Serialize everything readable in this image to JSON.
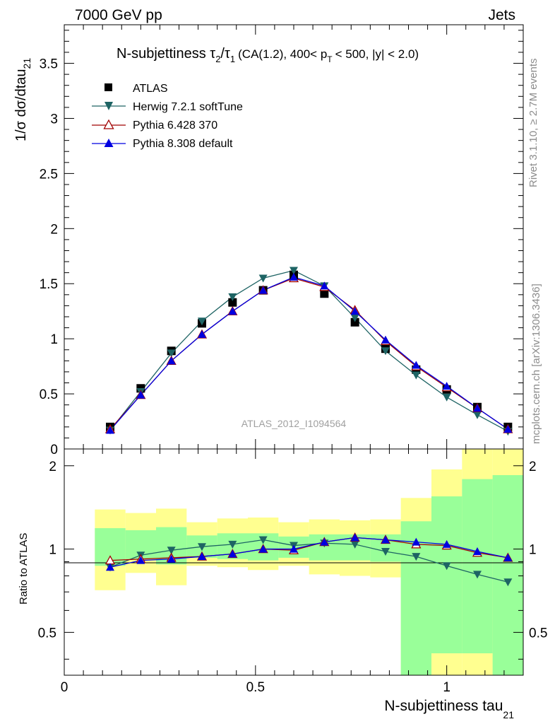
{
  "header": {
    "left": "7000 GeV pp",
    "right": "Jets"
  },
  "side_labels": {
    "rivet": "Rivet 3.1.10, ≥ 2.7M events",
    "mcplots": "mcplots.cern.ch [arXiv:1306.3436]"
  },
  "chart_data": [
    {
      "panel": "distribution",
      "type": "line",
      "title_main": "N-subjettiness τ",
      "title_tau2_sub": "2",
      "title_slash": "/τ",
      "title_tau1_sub": "1",
      "title_cut1": "(CA(1.2), 400< p",
      "title_pt_sub": "T",
      "title_cut2": "< 500, |y| < 2.0)",
      "ylabel": "1/σ dσ/dtau",
      "ylabel_sub": "21",
      "xlim": [
        0,
        1.2
      ],
      "ylim": [
        0,
        3.85
      ],
      "yticks": [
        "0",
        "0.5",
        "1",
        "1.5",
        "2",
        "2.5",
        "3",
        "3.5"
      ],
      "watermark": "ATLAS_2012_I1094564",
      "legend_position": "top-left",
      "x": [
        0.12,
        0.2,
        0.28,
        0.36,
        0.44,
        0.52,
        0.6,
        0.68,
        0.76,
        0.84,
        0.92,
        1.0,
        1.08,
        1.16
      ],
      "series": [
        {
          "name": "ATLAS",
          "marker": "square",
          "color": "#000000",
          "values": [
            0.2,
            0.55,
            0.89,
            1.14,
            1.33,
            1.44,
            1.58,
            1.41,
            1.15,
            0.91,
            0.72,
            0.54,
            0.38,
            0.2
          ]
        },
        {
          "name": "Herwig 7.2.1 softTune",
          "marker": "triangle-down",
          "color": "#1e6464",
          "values": [
            0.17,
            0.52,
            0.87,
            1.16,
            1.38,
            1.55,
            1.62,
            1.48,
            1.19,
            0.89,
            0.67,
            0.47,
            0.31,
            0.16
          ]
        },
        {
          "name": "Pythia 6.428 370",
          "marker": "triangle-open",
          "color": "#a00000",
          "values": [
            0.18,
            0.49,
            0.8,
            1.04,
            1.25,
            1.44,
            1.55,
            1.47,
            1.26,
            0.98,
            0.75,
            0.56,
            0.37,
            0.18
          ]
        },
        {
          "name": "Pythia 8.308 default",
          "marker": "triangle-up",
          "color": "#0000e0",
          "values": [
            0.17,
            0.49,
            0.8,
            1.04,
            1.25,
            1.44,
            1.56,
            1.48,
            1.25,
            0.99,
            0.76,
            0.57,
            0.37,
            0.18
          ]
        }
      ]
    },
    {
      "panel": "ratio",
      "type": "line",
      "ylabel": "Ratio to ATLAS",
      "xlabel": "N-subjettiness tau",
      "xlabel_sub": "21",
      "xlim": [
        0,
        1.2
      ],
      "ylim_log": [
        0.35,
        2.3
      ],
      "yticks": [
        "0.5",
        "1",
        "2"
      ],
      "xticks": [
        "0",
        "0.5",
        "1"
      ],
      "bands": {
        "edges": [
          0.08,
          0.16,
          0.24,
          0.32,
          0.4,
          0.48,
          0.56,
          0.64,
          0.72,
          0.8,
          0.88,
          0.96,
          1.04,
          1.12,
          1.2
        ],
        "yellow_low": [
          0.71,
          0.82,
          0.74,
          0.87,
          0.86,
          0.84,
          0.87,
          0.81,
          0.8,
          0.79,
          0.3,
          0.3,
          0.3,
          0.3
        ],
        "yellow_high": [
          1.39,
          1.35,
          1.4,
          1.25,
          1.29,
          1.3,
          1.25,
          1.28,
          1.27,
          1.28,
          1.53,
          1.94,
          2.5,
          2.5
        ],
        "green_low": [
          0.87,
          0.92,
          0.88,
          0.93,
          0.92,
          0.91,
          0.93,
          0.91,
          0.91,
          0.9,
          0.3,
          0.42,
          0.42,
          0.3
        ],
        "green_high": [
          1.19,
          1.17,
          1.2,
          1.12,
          1.14,
          1.14,
          1.11,
          1.13,
          1.13,
          1.13,
          1.26,
          1.55,
          1.79,
          1.85
        ]
      },
      "x": [
        0.12,
        0.2,
        0.28,
        0.36,
        0.44,
        0.52,
        0.6,
        0.68,
        0.76,
        0.84,
        0.92,
        1.0,
        1.08,
        1.16
      ],
      "series": [
        {
          "name": "Herwig 7.2.1 softTune",
          "marker": "triangle-down",
          "color": "#1e6464",
          "values": [
            0.86,
            0.95,
            0.99,
            1.02,
            1.04,
            1.08,
            1.03,
            1.05,
            1.04,
            0.98,
            0.94,
            0.87,
            0.81,
            0.76
          ]
        },
        {
          "name": "Pythia 6.428 370",
          "marker": "triangle-open",
          "color": "#a00000",
          "values": [
            0.91,
            0.92,
            0.93,
            0.94,
            0.96,
            1.0,
            0.99,
            1.06,
            1.1,
            1.08,
            1.04,
            1.03,
            0.97,
            0.93
          ]
        },
        {
          "name": "Pythia 8.308 default",
          "marker": "triangle-up",
          "color": "#0000e0",
          "values": [
            0.86,
            0.91,
            0.92,
            0.94,
            0.96,
            1.0,
            1.0,
            1.06,
            1.1,
            1.08,
            1.06,
            1.04,
            0.98,
            0.93
          ]
        }
      ]
    }
  ]
}
